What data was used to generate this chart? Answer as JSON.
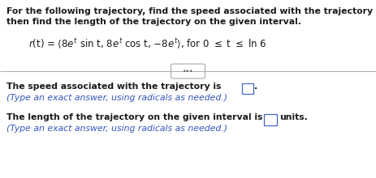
{
  "bg_color": "#ffffff",
  "text_color_black": "#1a1a1a",
  "text_color_blue": "#3355bb",
  "line1": "For the following trajectory, find the speed associated with the trajectory and",
  "line2": "then find the length of the trajectory on the given interval.",
  "speed_text1": "The speed associated with the trajectory is",
  "speed_text2": ".",
  "speed_hint": "(Type an exact answer, using radicals as needed.)",
  "length_text1": "The length of the trajectory on the given interval is",
  "length_text2": "units.",
  "length_hint": "(Type an exact answer, using radicals as needed.)",
  "box_color": "#4466cc",
  "figsize": [
    4.63,
    2.2
  ],
  "dpi": 100
}
